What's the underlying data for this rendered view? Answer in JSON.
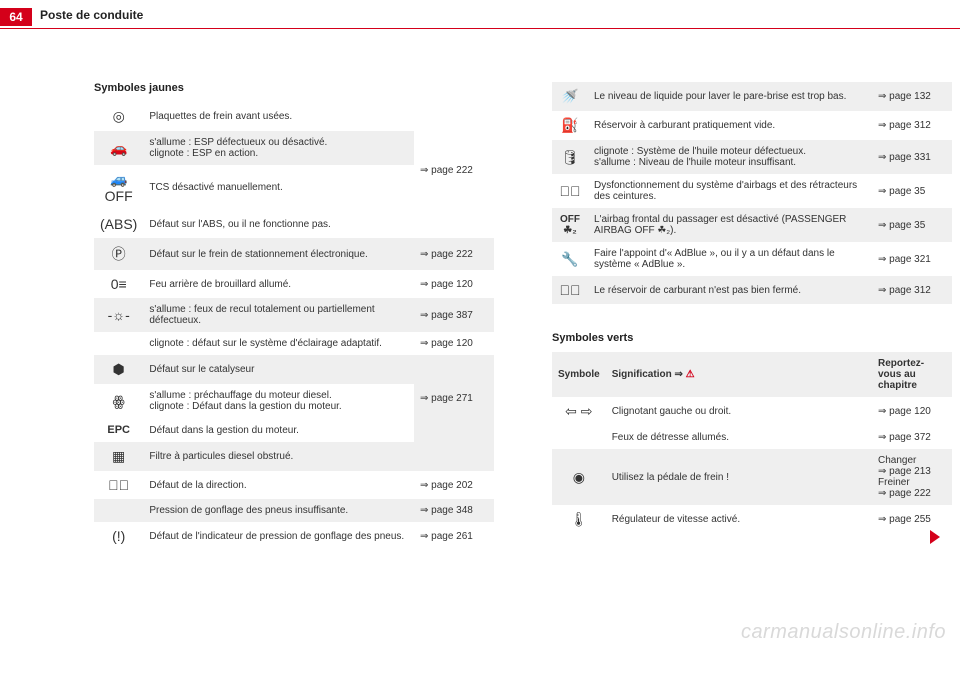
{
  "header": {
    "page_number": "64",
    "chapter_title": "Poste de conduite"
  },
  "left_section_heading": "Symboles jaunes",
  "left_table": [
    {
      "icon": "◎",
      "desc": "Plaquettes de frein avant usées.",
      "page": "",
      "shaded": false,
      "rowspan_page": 4,
      "page_merged": "⇒ page 222"
    },
    {
      "icon": "🚗",
      "desc": "s'allume : ESP défectueux ou désactivé.\nclignote : ESP en action.",
      "page": "",
      "shaded": true
    },
    {
      "icon": "🚙\nOFF",
      "desc": "TCS désactivé manuellement.",
      "page": "",
      "shaded": false
    },
    {
      "icon": "(ABS)",
      "desc": "Défaut sur l'ABS, ou il ne fonctionne pas.",
      "page": "",
      "shaded": false
    },
    {
      "icon": "Ⓟ",
      "desc": "Défaut sur le frein de stationnement électronique.",
      "page": "⇒ page 222",
      "shaded": true
    },
    {
      "icon": "0≡",
      "desc": "Feu arrière de brouillard allumé.",
      "page": "⇒ page 120",
      "shaded": false
    },
    {
      "icon": "-☼-",
      "desc": "s'allume : feux de recul totalement ou partiellement défectueux.",
      "page": "⇒ page 387",
      "shaded": true
    },
    {
      "icon": "",
      "desc": "clignote : défaut sur le système d'éclairage adaptatif.",
      "page": "⇒ page 120",
      "shaded": false
    },
    {
      "icon": "⬢",
      "desc": "Défaut sur le catalyseur",
      "page": "",
      "shaded": true,
      "rowspan_page": 3,
      "page_merged": "⇒ page 271"
    },
    {
      "icon": "ꙮ",
      "desc": "s'allume : préchauffage du moteur diesel.\nclignote : Défaut dans la gestion du moteur.",
      "page": "",
      "shaded": false
    },
    {
      "icon": "EPC",
      "desc": "Défaut dans la gestion du moteur.",
      "page": "",
      "shaded": false
    },
    {
      "icon": "▦",
      "desc": "Filtre à particules diesel obstrué.",
      "page": "",
      "shaded": true
    },
    {
      "icon": "◎⃒",
      "desc": "Défaut de la direction.",
      "page": "⇒ page 202",
      "shaded": false
    },
    {
      "icon": "",
      "desc": "Pression de gonflage des pneus insuffisante.",
      "page": "⇒ page 348",
      "shaded": true
    },
    {
      "icon": "(!)",
      "desc": "Défaut de l'indicateur de pression de gonflage des pneus.",
      "page": "⇒ page 261",
      "shaded": false
    }
  ],
  "right_table": [
    {
      "icon": "🚿",
      "desc": "Le niveau de liquide pour laver le pare-brise est trop bas.",
      "page": "⇒ page 132",
      "shaded": true
    },
    {
      "icon": "⛽",
      "desc": "Réservoir à carburant pratiquement vide.",
      "page": "⇒ page 312",
      "shaded": false
    },
    {
      "icon": "🛢",
      "desc": "clignote : Système de l'huile moteur défectueux.\ns'allume : Niveau de l'huile moteur insuffisant.",
      "page": "⇒ page 331",
      "shaded": true
    },
    {
      "icon": "⚠⃝",
      "desc": "Dysfonctionnement du système d'airbags et des rétracteurs des ceintures.",
      "page": "⇒ page 35",
      "shaded": false
    },
    {
      "icon": "OFF\n☘₂",
      "desc": "L'airbag frontal du passager est désactivé (PASSENGER AIRBAG OFF ☘₂).",
      "page": "⇒ page 35",
      "shaded": true
    },
    {
      "icon": "🔧",
      "desc": "Faire l'appoint d'« AdBlue », ou il y a un défaut dans le système « AdBlue ».",
      "page": "⇒ page 321",
      "shaded": false
    },
    {
      "icon": "🚗⃠",
      "desc": "Le réservoir de carburant n'est pas bien fermé.",
      "page": "⇒ page 312",
      "shaded": true
    }
  ],
  "green_section_heading": "Symboles verts",
  "green_header": {
    "col1": "Symbole",
    "col2_prefix": "Signification ⇒ ",
    "col2_warn": "⚠",
    "col3": "Reportez-vous au chapitre"
  },
  "green_table": [
    {
      "icon": "⇦ ⇨",
      "desc": "Clignotant gauche ou droit.",
      "page": "⇒ page 120",
      "shaded": false
    },
    {
      "icon": "",
      "desc": "Feux de détresse allumés.",
      "page": "⇒ page 372",
      "shaded": false
    },
    {
      "icon": "◉",
      "desc": "Utilisez la pédale de frein !",
      "page": "Changer\n⇒ page 213\nFreiner\n⇒ page 222",
      "shaded": true
    },
    {
      "icon": "🌡",
      "desc": "Régulateur de vitesse activé.",
      "page": "⇒ page 255",
      "shaded": false
    }
  ],
  "watermark": "carmanualsonline.info",
  "colors": {
    "accent": "#d4001a",
    "shade": "#efefef",
    "text": "#333333"
  }
}
